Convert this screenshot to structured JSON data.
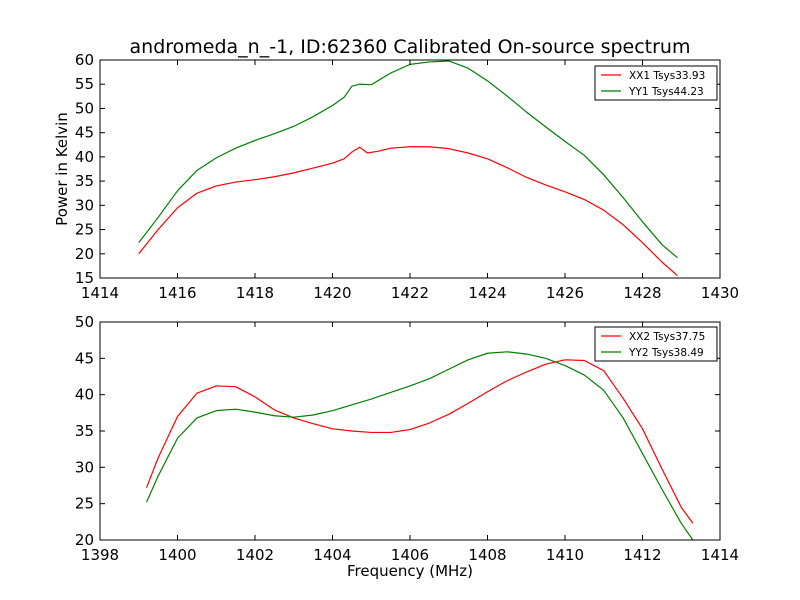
{
  "figure": {
    "title": "andromeda_n_-1, ID:62360 Calibrated On-source spectrum"
  },
  "chart_data": [
    {
      "type": "line",
      "title": "andromeda_n_-1, ID:62360 Calibrated On-source spectrum",
      "xlabel": "",
      "ylabel": "Power in Kelvin",
      "xlim": [
        1414,
        1430
      ],
      "ylim": [
        15,
        60
      ],
      "xticks": [
        1414,
        1416,
        1418,
        1420,
        1422,
        1424,
        1426,
        1428,
        1430
      ],
      "yticks": [
        15,
        20,
        25,
        30,
        35,
        40,
        45,
        50,
        55,
        60
      ],
      "grid": false,
      "legend_position": "top-right",
      "series": [
        {
          "name": "XX1 Tsys33.93",
          "color": "#ff0000",
          "x": [
            1415.0,
            1415.5,
            1416.0,
            1416.5,
            1417.0,
            1417.5,
            1418.0,
            1418.5,
            1419.0,
            1419.5,
            1420.0,
            1420.3,
            1420.5,
            1420.7,
            1420.9,
            1421.2,
            1421.5,
            1422.0,
            1422.5,
            1423.0,
            1423.5,
            1424.0,
            1424.5,
            1425.0,
            1425.5,
            1426.0,
            1426.5,
            1427.0,
            1427.5,
            1428.0,
            1428.5,
            1428.9
          ],
          "y": [
            20.0,
            25.0,
            29.5,
            32.5,
            34.0,
            34.8,
            35.3,
            35.9,
            36.7,
            37.7,
            38.7,
            39.6,
            41.0,
            42.0,
            40.8,
            41.2,
            41.8,
            42.1,
            42.1,
            41.7,
            40.8,
            39.6,
            37.8,
            35.8,
            34.2,
            32.8,
            31.2,
            29.0,
            26.0,
            22.3,
            18.3,
            15.5
          ]
        },
        {
          "name": "YY1 Tsys44.23",
          "color": "#007f00",
          "x": [
            1415.0,
            1415.5,
            1416.0,
            1416.5,
            1417.0,
            1417.5,
            1418.0,
            1418.5,
            1419.0,
            1419.5,
            1420.0,
            1420.3,
            1420.5,
            1420.7,
            1421.0,
            1421.5,
            1422.0,
            1422.5,
            1423.0,
            1423.5,
            1424.0,
            1424.5,
            1425.0,
            1425.5,
            1426.0,
            1426.5,
            1427.0,
            1427.5,
            1428.0,
            1428.5,
            1428.9
          ],
          "y": [
            22.3,
            27.5,
            33.0,
            37.2,
            39.8,
            41.8,
            43.4,
            44.8,
            46.3,
            48.3,
            50.6,
            52.3,
            54.6,
            55.0,
            54.9,
            57.3,
            59.1,
            59.6,
            59.8,
            58.3,
            55.7,
            52.6,
            49.3,
            46.2,
            43.2,
            40.3,
            36.3,
            31.6,
            26.6,
            21.9,
            19.2
          ]
        }
      ]
    },
    {
      "type": "line",
      "title": "",
      "xlabel": "Frequency (MHz)",
      "ylabel": "",
      "xlim": [
        1398,
        1414
      ],
      "ylim": [
        20,
        50
      ],
      "xticks": [
        1398,
        1400,
        1402,
        1404,
        1406,
        1408,
        1410,
        1412,
        1414
      ],
      "yticks": [
        20,
        25,
        30,
        35,
        40,
        45,
        50
      ],
      "grid": false,
      "legend_position": "top-right",
      "series": [
        {
          "name": "XX2 Tsys37.75",
          "color": "#ff0000",
          "x": [
            1399.2,
            1399.5,
            1400.0,
            1400.5,
            1401.0,
            1401.5,
            1402.0,
            1402.5,
            1403.0,
            1403.5,
            1404.0,
            1404.5,
            1405.0,
            1405.5,
            1406.0,
            1406.5,
            1407.0,
            1407.5,
            1408.0,
            1408.5,
            1409.0,
            1409.5,
            1410.0,
            1410.5,
            1411.0,
            1411.5,
            1412.0,
            1412.5,
            1413.0,
            1413.3
          ],
          "y": [
            27.2,
            31.3,
            37.0,
            40.2,
            41.2,
            41.1,
            39.7,
            37.9,
            36.8,
            36.0,
            35.3,
            35.0,
            34.8,
            34.8,
            35.2,
            36.1,
            37.3,
            38.8,
            40.4,
            41.9,
            43.1,
            44.2,
            44.8,
            44.7,
            43.3,
            39.5,
            35.3,
            29.8,
            24.5,
            22.3
          ]
        },
        {
          "name": "YY2 Tsys38.49",
          "color": "#007f00",
          "x": [
            1399.2,
            1399.5,
            1400.0,
            1400.5,
            1401.0,
            1401.5,
            1402.0,
            1402.5,
            1403.0,
            1403.5,
            1404.0,
            1404.5,
            1405.0,
            1405.5,
            1406.0,
            1406.5,
            1407.0,
            1407.5,
            1408.0,
            1408.5,
            1409.0,
            1409.5,
            1410.0,
            1410.5,
            1411.0,
            1411.5,
            1412.0,
            1412.5,
            1413.0,
            1413.3
          ],
          "y": [
            25.2,
            28.8,
            34.0,
            36.8,
            37.8,
            38.0,
            37.6,
            37.1,
            36.9,
            37.2,
            37.8,
            38.6,
            39.4,
            40.3,
            41.2,
            42.2,
            43.5,
            44.8,
            45.7,
            45.9,
            45.6,
            45.0,
            44.0,
            42.7,
            40.6,
            36.8,
            31.9,
            27.0,
            22.3,
            20.0
          ]
        }
      ]
    }
  ]
}
